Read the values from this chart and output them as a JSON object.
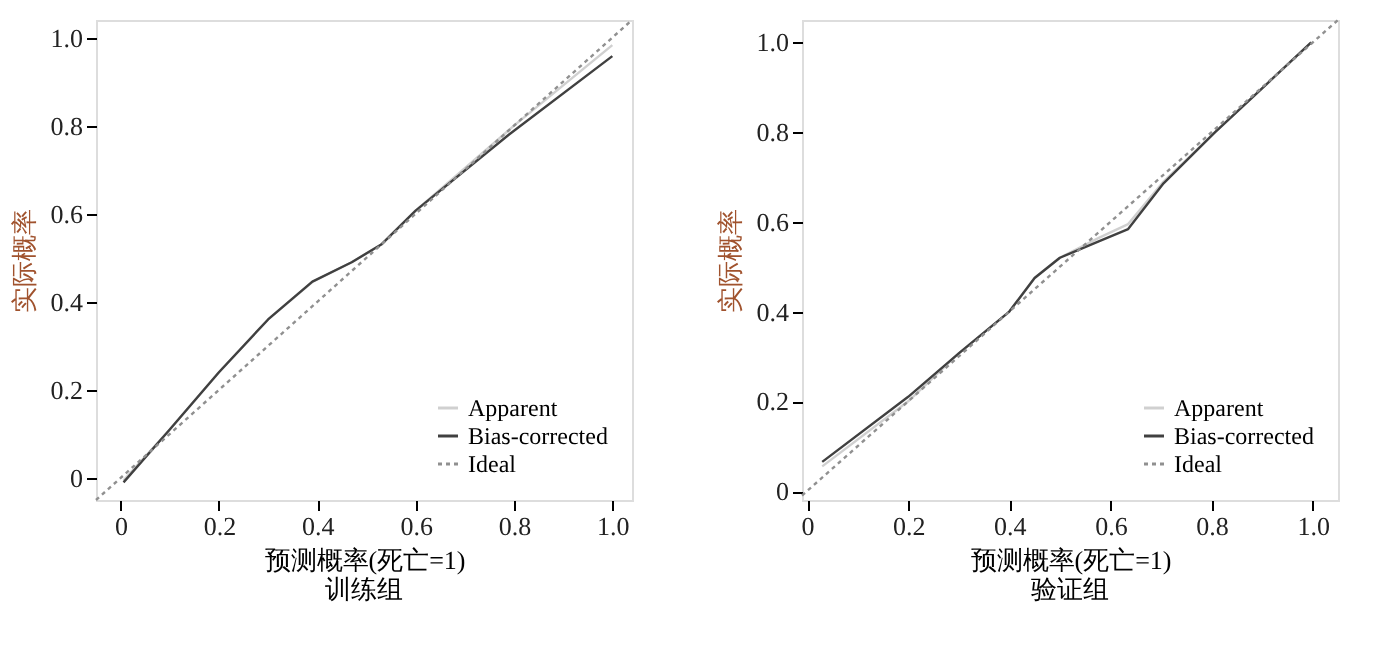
{
  "chart_data": [
    {
      "type": "line",
      "title": "训练组",
      "xlabel": "预测概率(死亡=1)",
      "ylabel": "实际概率",
      "xlim": [
        -0.05,
        1.04
      ],
      "ylim": [
        -0.05,
        1.04
      ],
      "xticks": [
        0,
        0.2,
        0.4,
        0.6,
        0.8,
        {
          "value": 1,
          "label": "1.0"
        }
      ],
      "yticks": [
        0,
        0.2,
        0.4,
        0.6,
        0.8,
        {
          "value": 1,
          "label": "1.0"
        }
      ],
      "grid": false,
      "legend": "bottom right",
      "marker": "none",
      "series": [
        {
          "name": "Apparent",
          "color": "#d0d0d0",
          "line_style": "solid",
          "x": [
            0.006,
            0.1,
            0.2,
            0.3,
            0.39,
            0.47,
            0.53,
            0.6,
            0.8,
            1.0
          ],
          "values": [
            -0.005,
            0.11,
            0.24,
            0.36,
            0.445,
            0.49,
            0.53,
            0.607,
            0.8,
            0.983
          ]
        },
        {
          "name": "Bias-corrected",
          "color": "#404040",
          "line_style": "solid",
          "x": [
            0.006,
            0.1,
            0.2,
            0.3,
            0.39,
            0.47,
            0.53,
            0.6,
            0.79,
            1.0
          ],
          "values": [
            -0.01,
            0.11,
            0.24,
            0.36,
            0.446,
            0.49,
            0.53,
            0.607,
            0.78,
            0.958
          ]
        },
        {
          "name": "Ideal",
          "color": "#909090",
          "line_style": "dotted",
          "x": [
            -0.05,
            1.04
          ],
          "values": [
            -0.05,
            1.04
          ]
        }
      ]
    },
    {
      "type": "line",
      "title": "验证组",
      "xlabel": "预测概率(死亡=1)",
      "ylabel": "实际概率",
      "xlim": [
        -0.01,
        1.05
      ],
      "ylim": [
        -0.02,
        1.05
      ],
      "xticks": [
        0,
        0.2,
        0.4,
        0.6,
        0.8,
        {
          "value": 1,
          "label": "1.0"
        }
      ],
      "yticks": [
        0,
        0.2,
        0.4,
        0.6,
        0.8,
        {
          "value": 1,
          "label": "1.0"
        }
      ],
      "grid": false,
      "legend": "bottom right",
      "marker": "none",
      "series": [
        {
          "name": "Apparent",
          "color": "#d0d0d0",
          "line_style": "solid",
          "x": [
            0.03,
            0.2,
            0.3,
            0.4,
            0.45,
            0.5,
            0.578,
            0.635,
            0.705,
            0.807,
            0.997
          ],
          "values": [
            0.055,
            0.2,
            0.307,
            0.4,
            0.475,
            0.52,
            0.565,
            0.595,
            0.69,
            0.8,
            1.0
          ]
        },
        {
          "name": "Bias-corrected",
          "color": "#404040",
          "line_style": "solid",
          "x": [
            0.03,
            0.2,
            0.3,
            0.4,
            0.45,
            0.5,
            0.578,
            0.635,
            0.705,
            0.807,
            0.997
          ],
          "values": [
            0.065,
            0.21,
            0.307,
            0.4,
            0.475,
            0.52,
            0.557,
            0.584,
            0.686,
            0.8,
            1.0
          ]
        },
        {
          "name": "Ideal",
          "color": "#909090",
          "line_style": "dotted",
          "x": [
            -0.01,
            1.05
          ],
          "values": [
            -0.01,
            1.05
          ]
        }
      ]
    }
  ]
}
